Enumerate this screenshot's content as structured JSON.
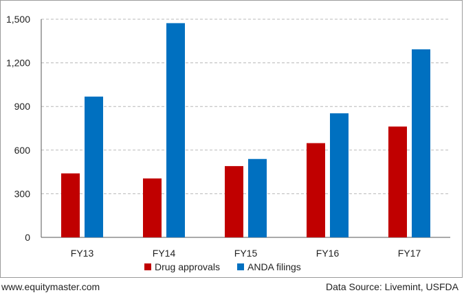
{
  "chart_data": {
    "type": "bar",
    "categories": [
      "FY13",
      "FY14",
      "FY15",
      "FY16",
      "FY17"
    ],
    "series": [
      {
        "name": "Drug approvals",
        "color": "#c00000",
        "values": [
          440,
          405,
          490,
          648,
          762
        ]
      },
      {
        "name": "ANDA filings",
        "color": "#0070c0",
        "values": [
          968,
          1473,
          539,
          853,
          1293
        ]
      }
    ],
    "ylim": [
      0,
      1500
    ],
    "yticks": [
      0,
      300,
      600,
      900,
      1200,
      1500
    ],
    "ytick_labels": [
      "0",
      "300",
      "600",
      "900",
      "1,200",
      "1,500"
    ],
    "grid": true,
    "legend_position": "bottom-center",
    "title": "",
    "xlabel": "",
    "ylabel": ""
  },
  "footer": {
    "website": "www.equitymaster.com",
    "source": "Data Source: Livemint, USFDA"
  }
}
